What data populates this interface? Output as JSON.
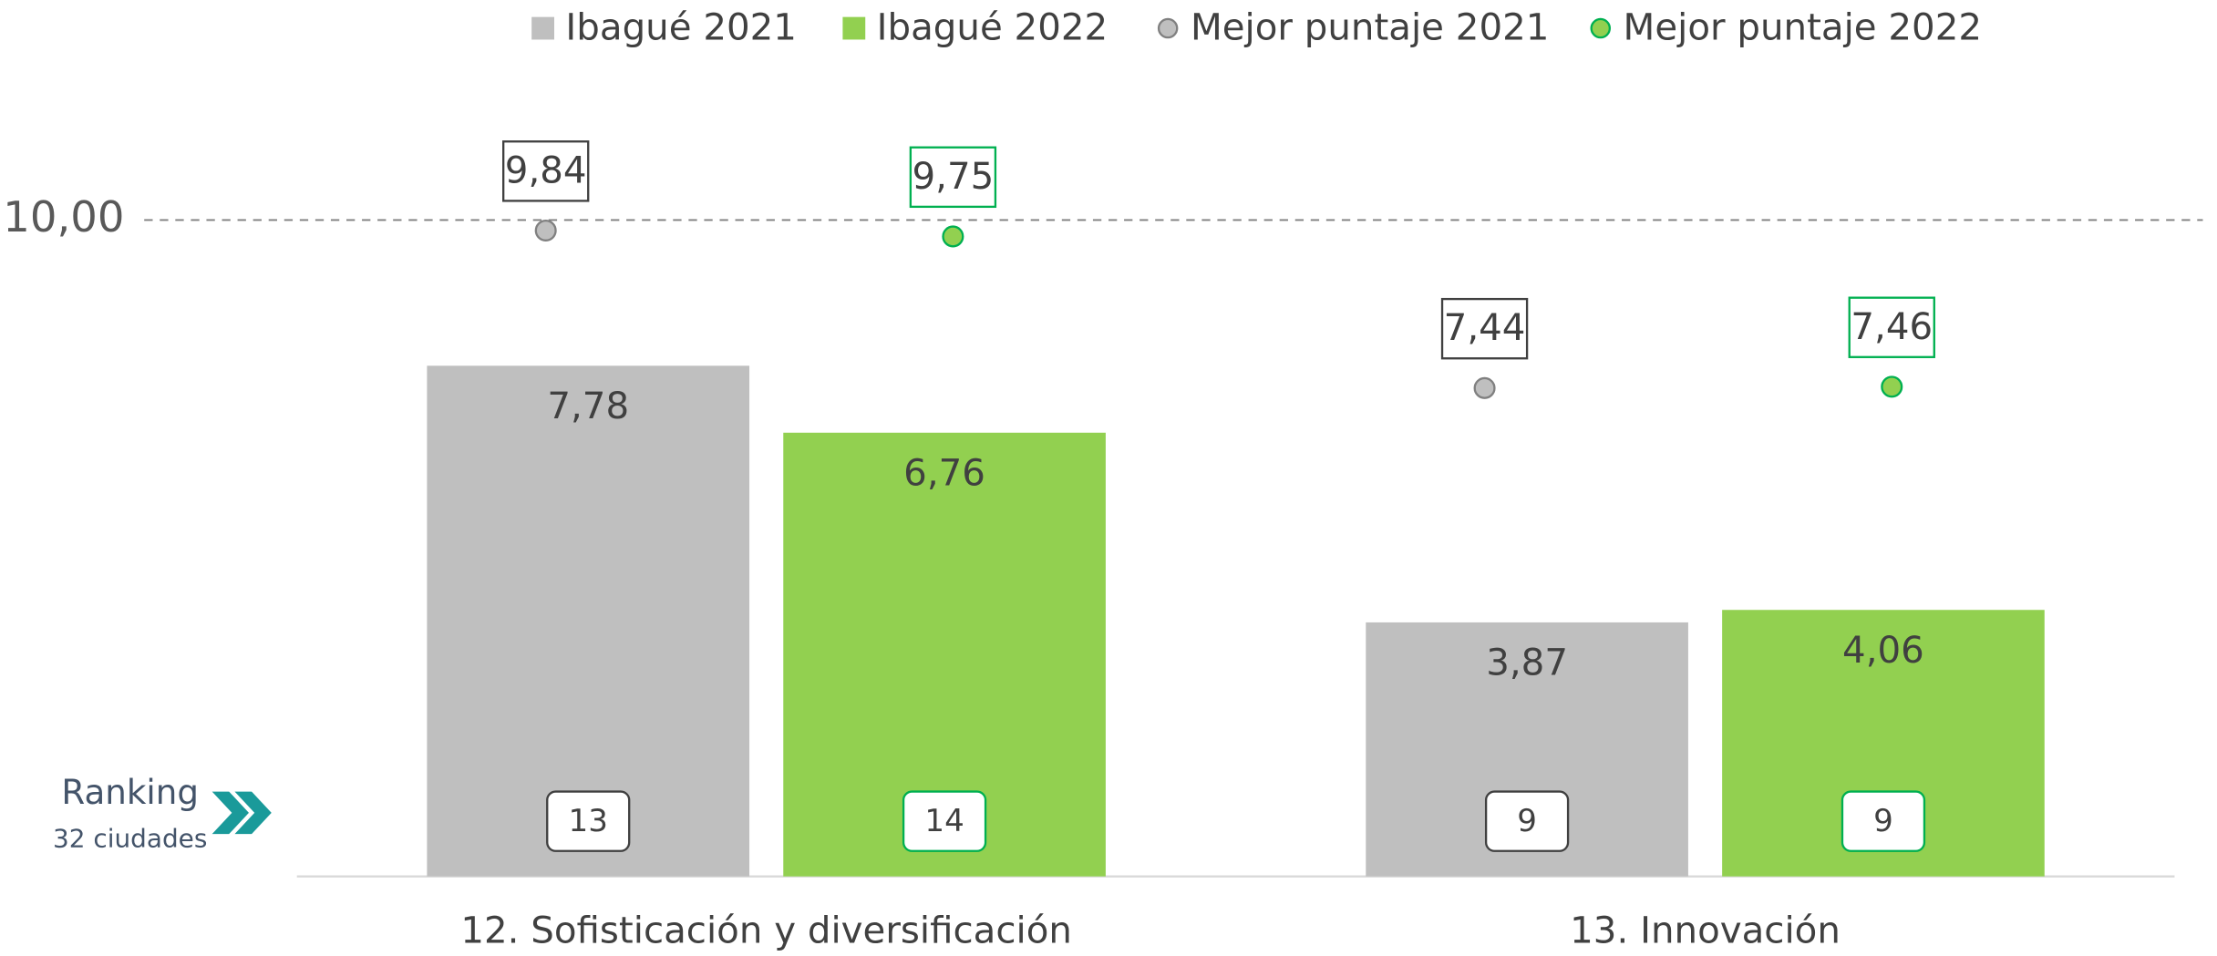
{
  "chart_data": {
    "type": "bar",
    "categories": [
      "12. Sofisticación y diversificación",
      "13. Innovación"
    ],
    "series": [
      {
        "name": "Ibagué 2021",
        "type": "bar",
        "color": "#bfbfbf",
        "label_border": "#404040",
        "values": [
          7.78,
          3.87
        ],
        "value_labels": [
          "7,78",
          "3,87"
        ],
        "rankings": [
          13,
          9
        ]
      },
      {
        "name": "Ibagué 2022",
        "type": "bar",
        "color": "#92d050",
        "label_border": "#00b050",
        "values": [
          6.76,
          4.06
        ],
        "value_labels": [
          "6,76",
          "4,06"
        ],
        "rankings": [
          14,
          9
        ]
      },
      {
        "name": "Mejor puntaje 2021",
        "type": "scatter",
        "color": "#bfbfbf",
        "label_border": "#404040",
        "values": [
          9.84,
          7.44
        ],
        "value_labels": [
          "9,84",
          "7,44"
        ]
      },
      {
        "name": "Mejor puntaje 2022",
        "type": "scatter",
        "color": "#92d050",
        "label_border": "#00b050",
        "values": [
          9.75,
          7.46
        ],
        "value_labels": [
          "9,75",
          "7,46"
        ]
      }
    ],
    "ranking_title": "Ranking",
    "ranking_subtitle": "32 ciudades",
    "ylim": [
      0,
      11.5
    ],
    "yticks": [
      {
        "value": 10,
        "label": "10,00"
      }
    ],
    "grid": "dashed"
  }
}
